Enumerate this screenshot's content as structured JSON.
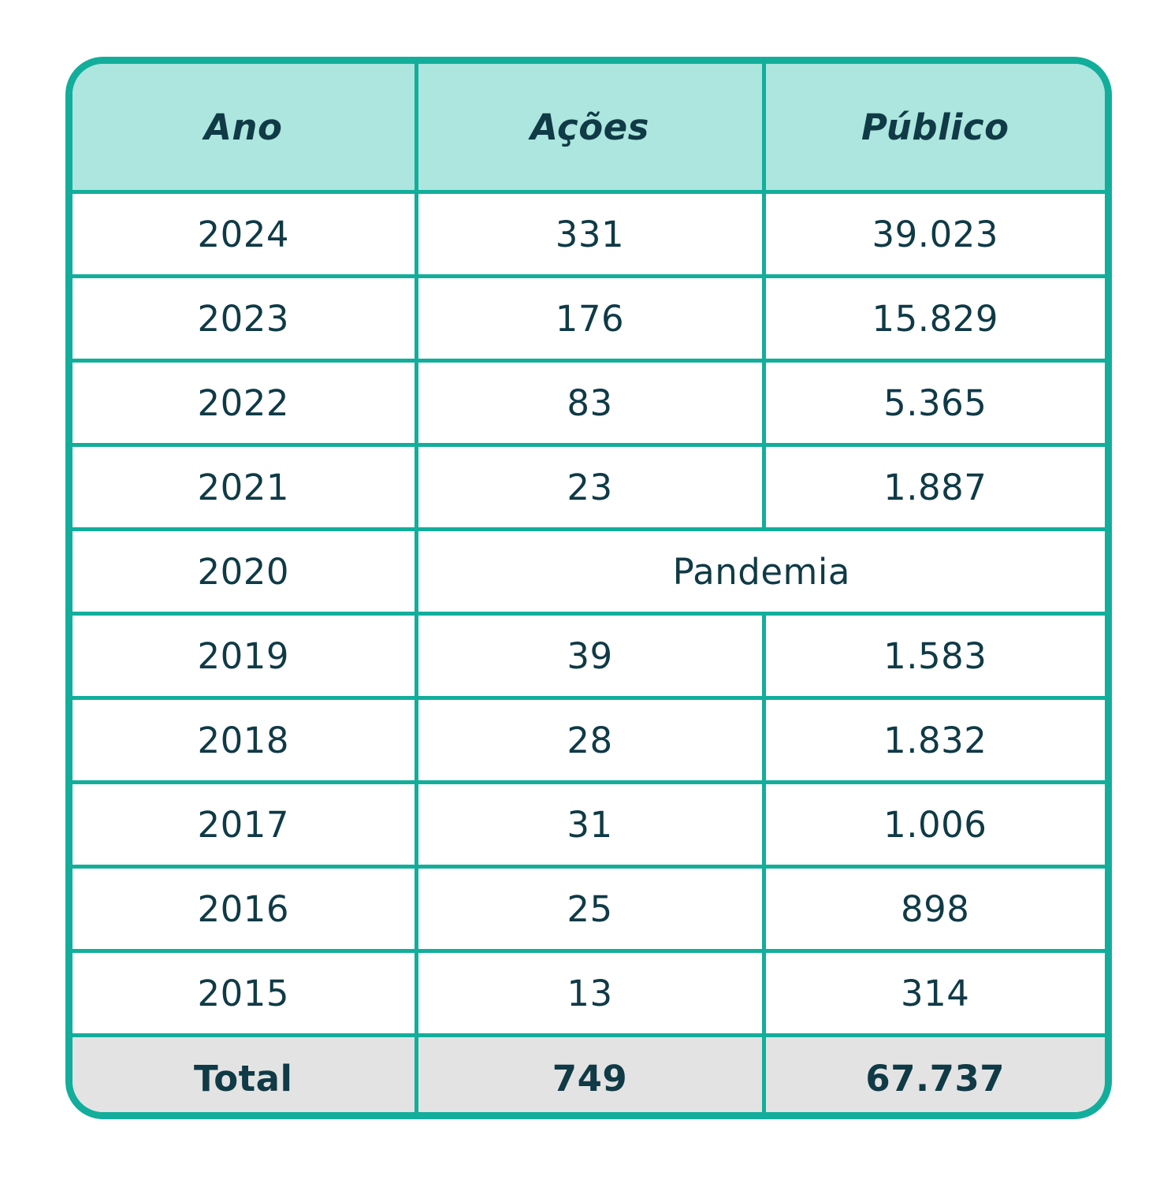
{
  "chart_data": {
    "type": "table",
    "columns": [
      "Ano",
      "Ações",
      "Público"
    ],
    "rows": [
      {
        "ano": "2024",
        "acoes": "331",
        "publico": "39.023"
      },
      {
        "ano": "2023",
        "acoes": "176",
        "publico": "15.829"
      },
      {
        "ano": "2022",
        "acoes": "83",
        "publico": "5.365"
      },
      {
        "ano": "2021",
        "acoes": "23",
        "publico": "1.887"
      },
      {
        "ano": "2020",
        "note": "Pandemia"
      },
      {
        "ano": "2019",
        "acoes": "39",
        "publico": "1.583"
      },
      {
        "ano": "2018",
        "acoes": "28",
        "publico": "1.832"
      },
      {
        "ano": "2017",
        "acoes": "31",
        "publico": "1.006"
      },
      {
        "ano": "2016",
        "acoes": "25",
        "publico": "898"
      },
      {
        "ano": "2015",
        "acoes": "13",
        "publico": "314"
      }
    ],
    "total": {
      "label": "Total",
      "acoes": "749",
      "publico": "67.737"
    }
  },
  "colors": {
    "border": "#12ae9b",
    "header_bg": "#ace6de",
    "total_bg": "#e3e3e3",
    "text": "#0f3a46"
  }
}
